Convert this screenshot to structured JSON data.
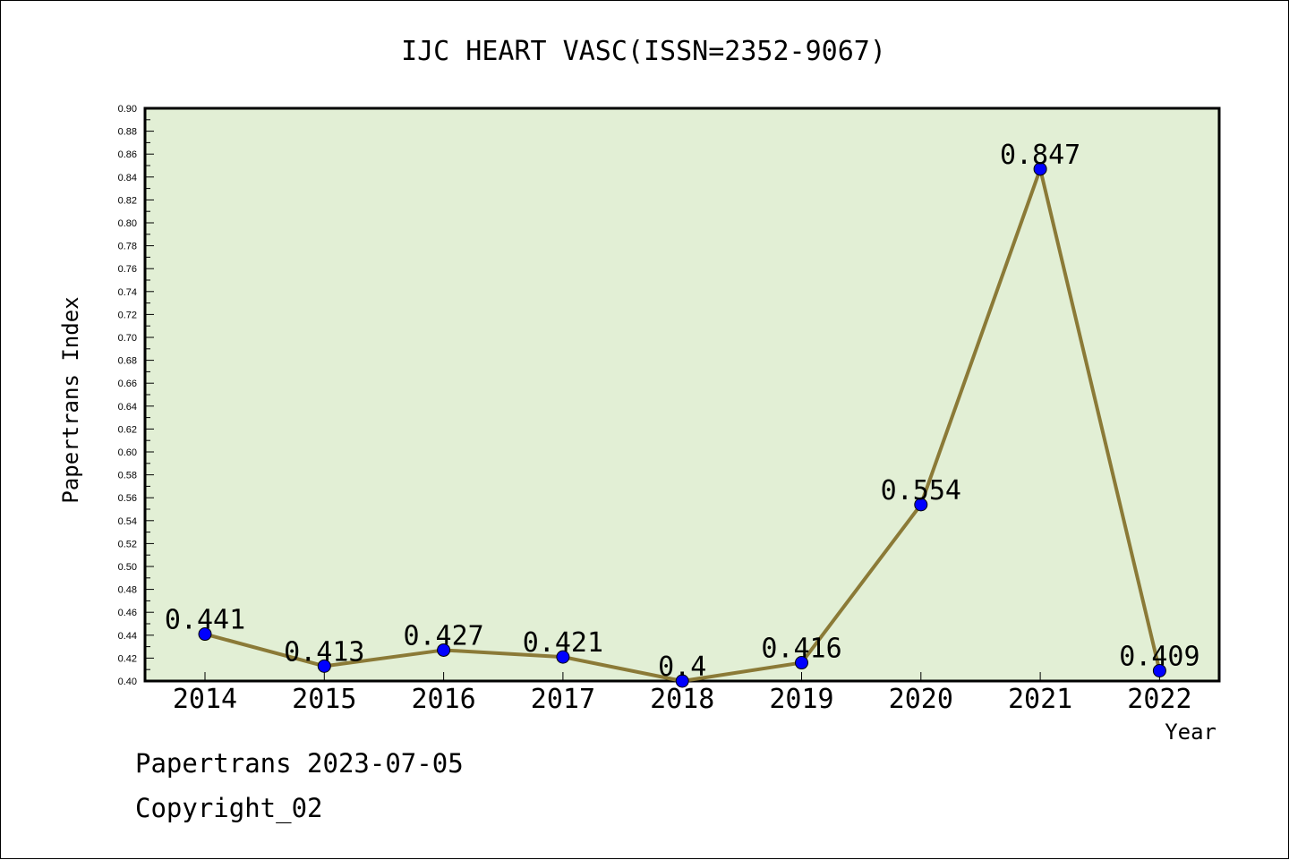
{
  "chart_data": {
    "type": "line",
    "title": "IJC HEART VASC(ISSN=2352-9067)",
    "xlabel": "Year",
    "ylabel": "Papertrans Index",
    "categories": [
      "2014",
      "2015",
      "2016",
      "2017",
      "2018",
      "2019",
      "2020",
      "2021",
      "2022"
    ],
    "series": [
      {
        "values": [
          0.441,
          0.413,
          0.427,
          0.421,
          0.4,
          0.416,
          0.554,
          0.847,
          0.409
        ],
        "labels": [
          "0.441",
          "0.413",
          "0.427",
          "0.421",
          "0.4",
          "0.416",
          "0.554",
          "0.847",
          "0.409"
        ]
      }
    ],
    "ylim": [
      0.4,
      0.9
    ],
    "ytick_labels": [
      "0.40",
      "0.42",
      "0.44",
      "0.46",
      "0.48",
      "0.50",
      "0.52",
      "0.54",
      "0.56",
      "0.58",
      "0.60",
      "0.62",
      "0.64",
      "0.66",
      "0.68",
      "0.70",
      "0.72",
      "0.74",
      "0.76",
      "0.78",
      "0.80",
      "0.82",
      "0.84",
      "0.86",
      "0.88",
      "0.90"
    ],
    "grid": false,
    "colors": {
      "plot_background": "#e2efd5",
      "line": "#8b7a37",
      "marker": "#0000ff"
    }
  },
  "footer": {
    "line1": "Papertrans 2023-07-05",
    "line2": "Copyright_02"
  }
}
